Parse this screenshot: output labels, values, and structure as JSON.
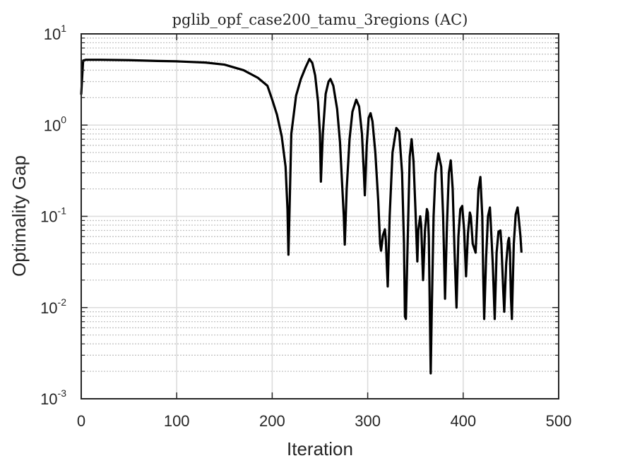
{
  "chart_data": {
    "type": "line",
    "title": "pglib_opf_case200_tamu_3regions (AC)",
    "xlabel": "Iteration",
    "ylabel": "Optimality Gap",
    "xlim": [
      0,
      500
    ],
    "ylim": [
      0.001,
      10
    ],
    "yscale": "log",
    "grid": "major and minor",
    "x_ticks": [
      {
        "label": "0",
        "value": 0
      },
      {
        "label": "100",
        "value": 100
      },
      {
        "label": "200",
        "value": 200
      },
      {
        "label": "300",
        "value": 300
      },
      {
        "label": "400",
        "value": 400
      },
      {
        "label": "500",
        "value": 500
      }
    ],
    "y_ticks": [
      {
        "base": "10",
        "exp": "1",
        "value": 10
      },
      {
        "base": "10",
        "exp": "0",
        "value": 1
      },
      {
        "base": "10",
        "exp": "-1",
        "value": 0.1
      },
      {
        "base": "10",
        "exp": "-2",
        "value": 0.01
      },
      {
        "base": "10",
        "exp": "-3",
        "value": 0.001
      }
    ],
    "series": [
      {
        "color": "#000000",
        "points": [
          [
            0,
            2.2
          ],
          [
            2,
            5.1
          ],
          [
            5,
            5.2
          ],
          [
            20,
            5.2
          ],
          [
            50,
            5.15
          ],
          [
            80,
            5.05
          ],
          [
            100,
            5.0
          ],
          [
            130,
            4.85
          ],
          [
            150,
            4.6
          ],
          [
            170,
            4.0
          ],
          [
            185,
            3.3
          ],
          [
            195,
            2.7
          ],
          [
            200,
            1.9
          ],
          [
            205,
            1.3
          ],
          [
            210,
            0.75
          ],
          [
            214,
            0.35
          ],
          [
            216,
            0.12
          ],
          [
            217,
            0.038
          ],
          [
            218,
            0.1
          ],
          [
            220,
            0.8
          ],
          [
            225,
            2.1
          ],
          [
            230,
            3.2
          ],
          [
            235,
            4.3
          ],
          [
            239,
            5.3
          ],
          [
            242,
            4.8
          ],
          [
            245,
            3.5
          ],
          [
            248,
            1.8
          ],
          [
            250,
            0.8
          ],
          [
            251,
            0.24
          ],
          [
            253,
            0.8
          ],
          [
            256,
            2.2
          ],
          [
            259,
            3.0
          ],
          [
            261,
            3.2
          ],
          [
            264,
            2.7
          ],
          [
            268,
            1.5
          ],
          [
            271,
            0.65
          ],
          [
            273,
            0.25
          ],
          [
            275,
            0.1
          ],
          [
            276,
            0.049
          ],
          [
            278,
            0.2
          ],
          [
            281,
            0.7
          ],
          [
            284,
            1.4
          ],
          [
            288,
            1.9
          ],
          [
            291,
            1.6
          ],
          [
            294,
            0.8
          ],
          [
            296,
            0.3
          ],
          [
            297,
            0.17
          ],
          [
            299,
            0.6
          ],
          [
            301,
            1.2
          ],
          [
            303,
            1.35
          ],
          [
            305,
            1.1
          ],
          [
            308,
            0.5
          ],
          [
            311,
            0.15
          ],
          [
            313,
            0.05
          ],
          [
            314,
            0.042
          ],
          [
            316,
            0.062
          ],
          [
            318,
            0.072
          ],
          [
            319,
            0.055
          ],
          [
            320,
            0.03
          ],
          [
            321,
            0.017
          ],
          [
            323,
            0.1
          ],
          [
            326,
            0.5
          ],
          [
            330,
            0.93
          ],
          [
            333,
            0.85
          ],
          [
            336,
            0.3
          ],
          [
            338,
            0.05
          ],
          [
            339,
            0.008
          ],
          [
            340,
            0.0075
          ],
          [
            342,
            0.06
          ],
          [
            344,
            0.45
          ],
          [
            346,
            0.7
          ],
          [
            348,
            0.4
          ],
          [
            350,
            0.12
          ],
          [
            352,
            0.032
          ],
          [
            353,
            0.07
          ],
          [
            355,
            0.1
          ],
          [
            356,
            0.08
          ],
          [
            357,
            0.04
          ],
          [
            358,
            0.02
          ],
          [
            360,
            0.07
          ],
          [
            362,
            0.12
          ],
          [
            363,
            0.11
          ],
          [
            364,
            0.06
          ],
          [
            365,
            0.01
          ],
          [
            366,
            0.0019
          ],
          [
            367,
            0.008
          ],
          [
            369,
            0.1
          ],
          [
            371,
            0.3
          ],
          [
            374,
            0.49
          ],
          [
            377,
            0.35
          ],
          [
            379,
            0.1
          ],
          [
            381,
            0.0125
          ],
          [
            383,
            0.08
          ],
          [
            385,
            0.3
          ],
          [
            387,
            0.41
          ],
          [
            389,
            0.2
          ],
          [
            391,
            0.04
          ],
          [
            393,
            0.01
          ],
          [
            395,
            0.06
          ],
          [
            397,
            0.12
          ],
          [
            399,
            0.13
          ],
          [
            401,
            0.07
          ],
          [
            403,
            0.022
          ],
          [
            405,
            0.065
          ],
          [
            407,
            0.11
          ],
          [
            408,
            0.1
          ],
          [
            410,
            0.05
          ],
          [
            413,
            0.04
          ],
          [
            416,
            0.2
          ],
          [
            418,
            0.27
          ],
          [
            420,
            0.1
          ],
          [
            421,
            0.022
          ],
          [
            422,
            0.0075
          ],
          [
            424,
            0.035
          ],
          [
            426,
            0.1
          ],
          [
            428,
            0.125
          ],
          [
            429,
            0.08
          ],
          [
            431,
            0.03
          ],
          [
            433,
            0.0075
          ],
          [
            435,
            0.04
          ],
          [
            437,
            0.068
          ],
          [
            439,
            0.07
          ],
          [
            440,
            0.05
          ],
          [
            442,
            0.015
          ],
          [
            443,
            0.009
          ],
          [
            445,
            0.03
          ],
          [
            447,
            0.053
          ],
          [
            448,
            0.058
          ],
          [
            449,
            0.04
          ],
          [
            450,
            0.013
          ],
          [
            451,
            0.0075
          ],
          [
            453,
            0.05
          ],
          [
            455,
            0.105
          ],
          [
            457,
            0.125
          ],
          [
            458,
            0.1
          ],
          [
            460,
            0.06
          ],
          [
            461,
            0.041
          ]
        ]
      }
    ]
  }
}
